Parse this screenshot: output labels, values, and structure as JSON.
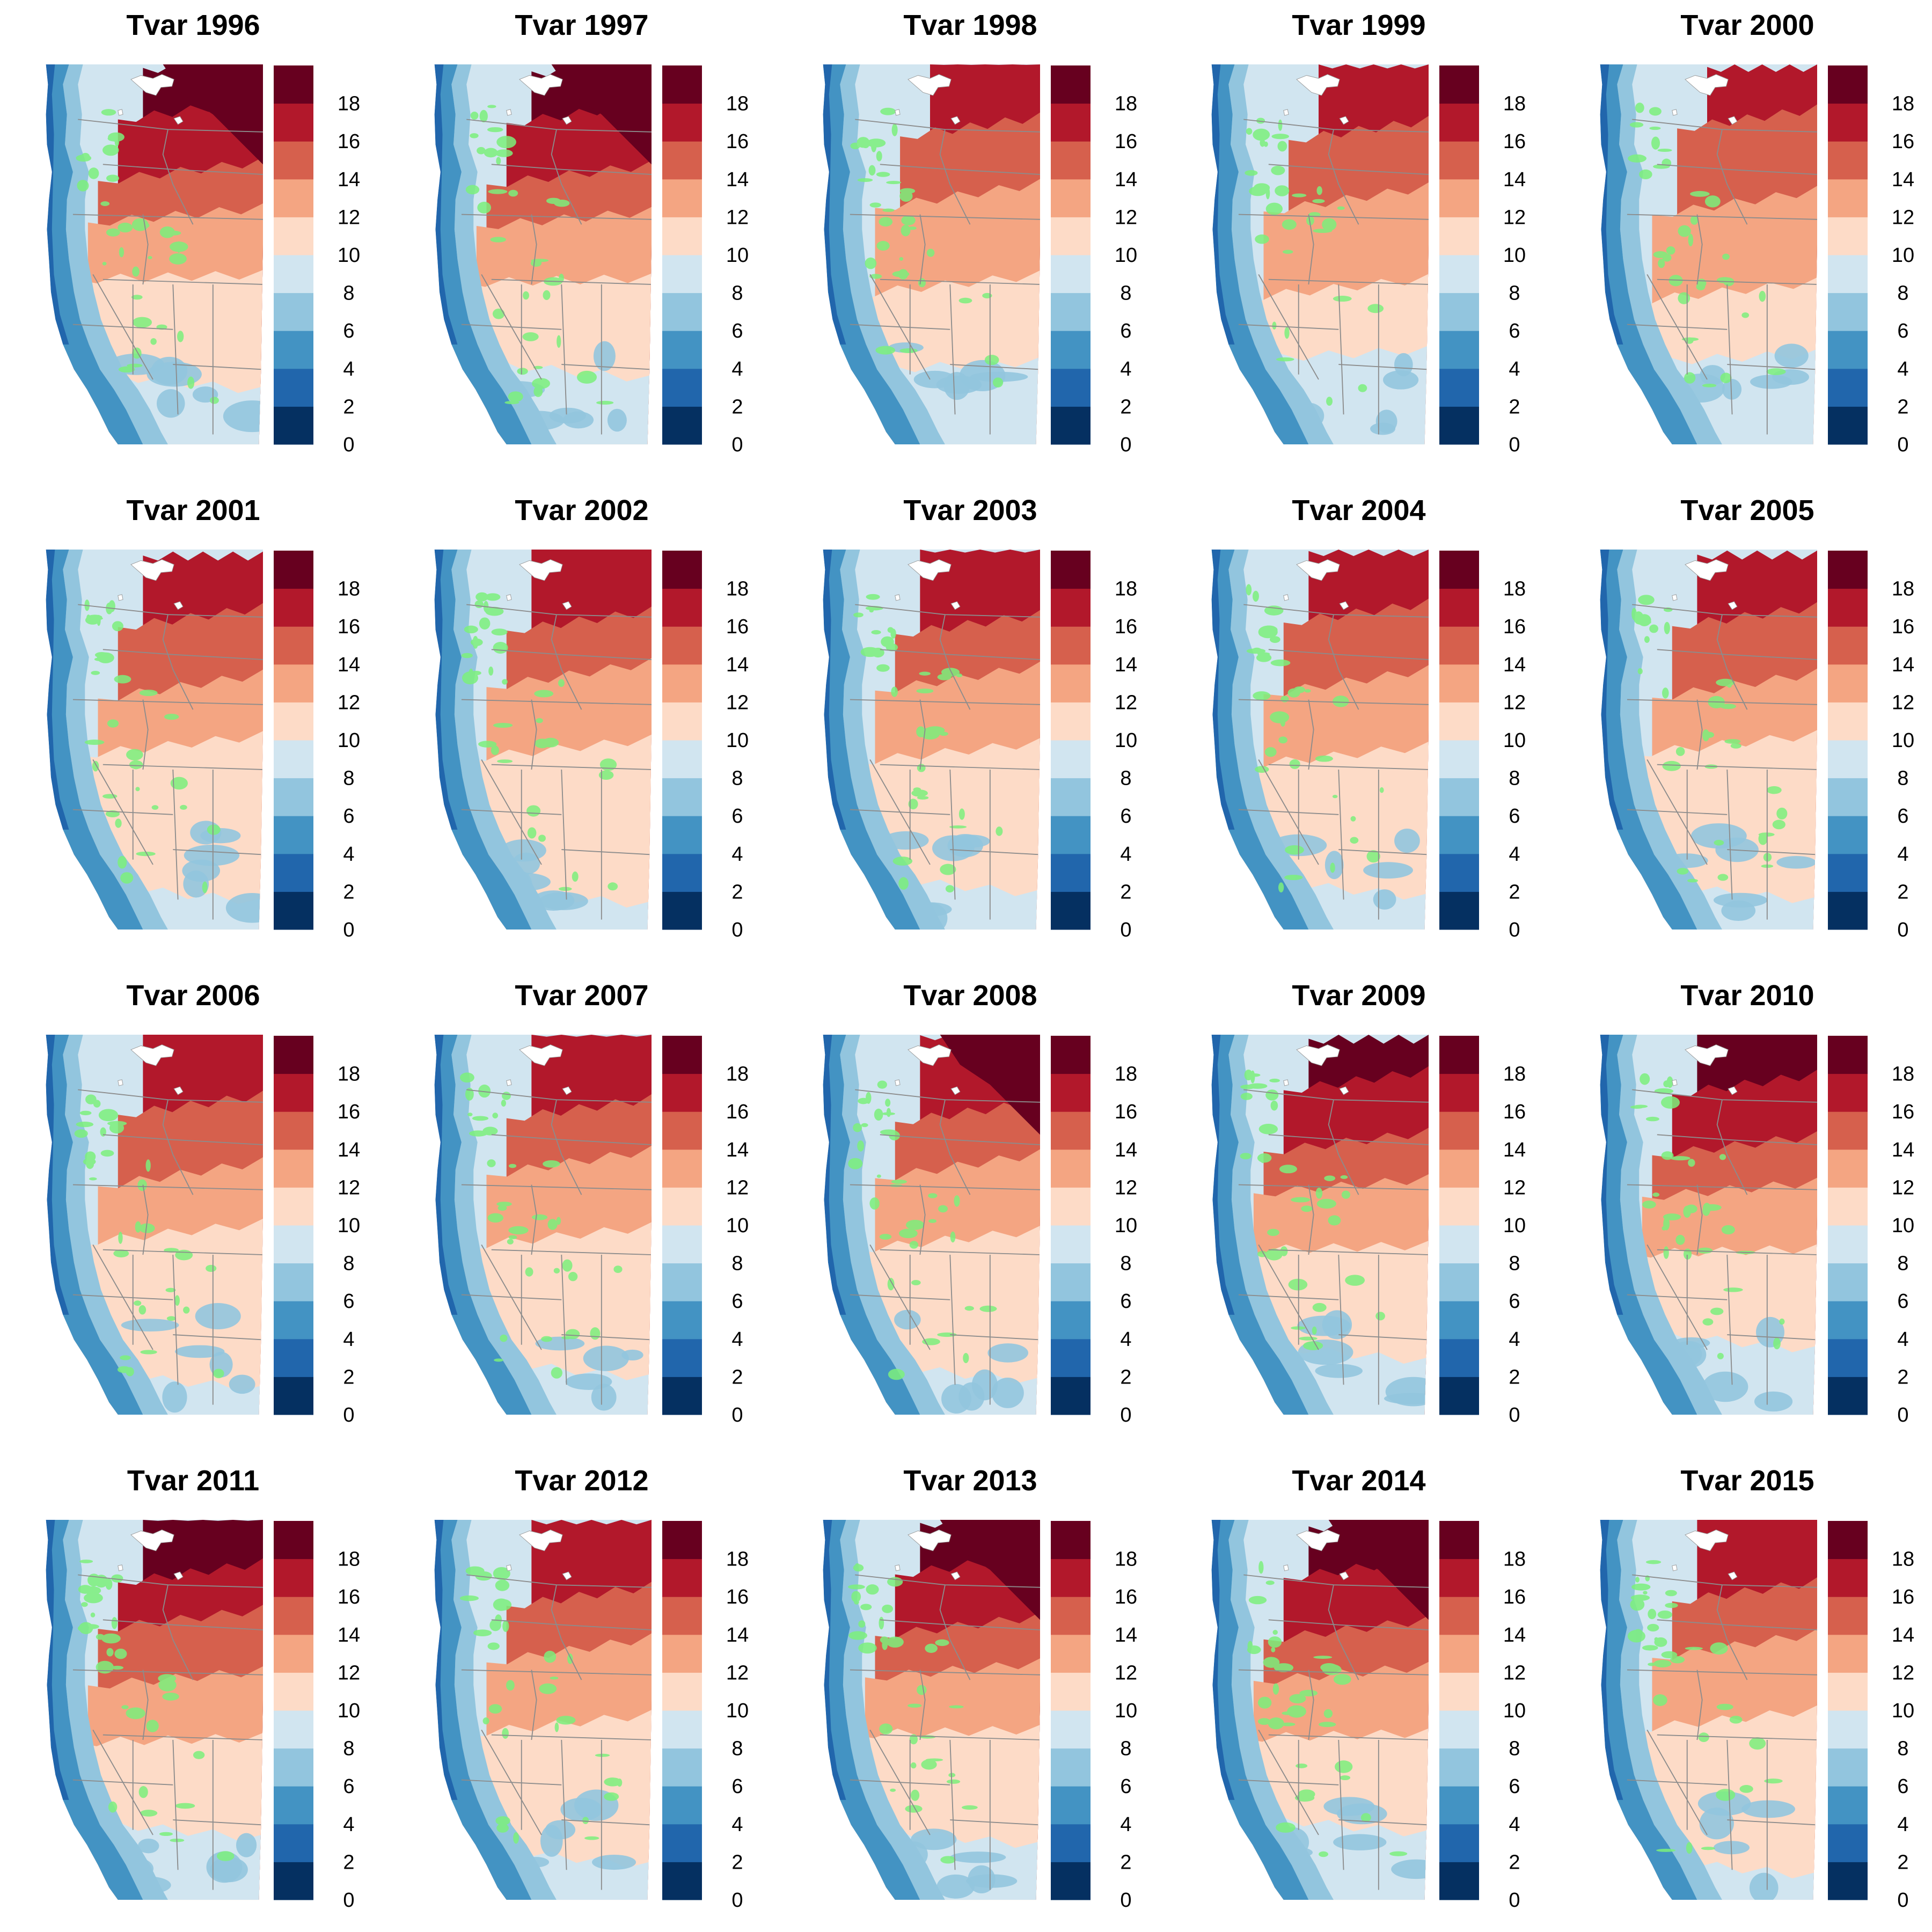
{
  "figure": {
    "colorbar": {
      "ticks": [
        "0",
        "2",
        "4",
        "6",
        "8",
        "10",
        "12",
        "14",
        "16",
        "18"
      ],
      "colors": [
        "#053061",
        "#2166ac",
        "#4393c3",
        "#92c5de",
        "#d1e5f0",
        "#fddbc7",
        "#f4a582",
        "#d6604d",
        "#b2182b",
        "#67001f"
      ],
      "overlay_color": "#7cf07c",
      "boundary_color": "#8c8c8c",
      "ice_color": "#ffffff"
    },
    "panels": [
      {
        "title": "Tvar 1996",
        "year": 1996
      },
      {
        "title": "Tvar 1997",
        "year": 1997
      },
      {
        "title": "Tvar 1998",
        "year": 1998
      },
      {
        "title": "Tvar 1999",
        "year": 1999
      },
      {
        "title": "Tvar 2000",
        "year": 2000
      },
      {
        "title": "Tvar 2001",
        "year": 2001
      },
      {
        "title": "Tvar 2002",
        "year": 2002
      },
      {
        "title": "Tvar 2003",
        "year": 2003
      },
      {
        "title": "Tvar 2004",
        "year": 2004
      },
      {
        "title": "Tvar 2005",
        "year": 2005
      },
      {
        "title": "Tvar 2006",
        "year": 2006
      },
      {
        "title": "Tvar 2007",
        "year": 2007
      },
      {
        "title": "Tvar 2008",
        "year": 2008
      },
      {
        "title": "Tvar 2009",
        "year": 2009
      },
      {
        "title": "Tvar 2010",
        "year": 2010
      },
      {
        "title": "Tvar 2011",
        "year": 2011
      },
      {
        "title": "Tvar 2012",
        "year": 2012
      },
      {
        "title": "Tvar 2013",
        "year": 2013
      },
      {
        "title": "Tvar 2014",
        "year": 2014
      },
      {
        "title": "Tvar 2015",
        "year": 2015
      }
    ]
  }
}
